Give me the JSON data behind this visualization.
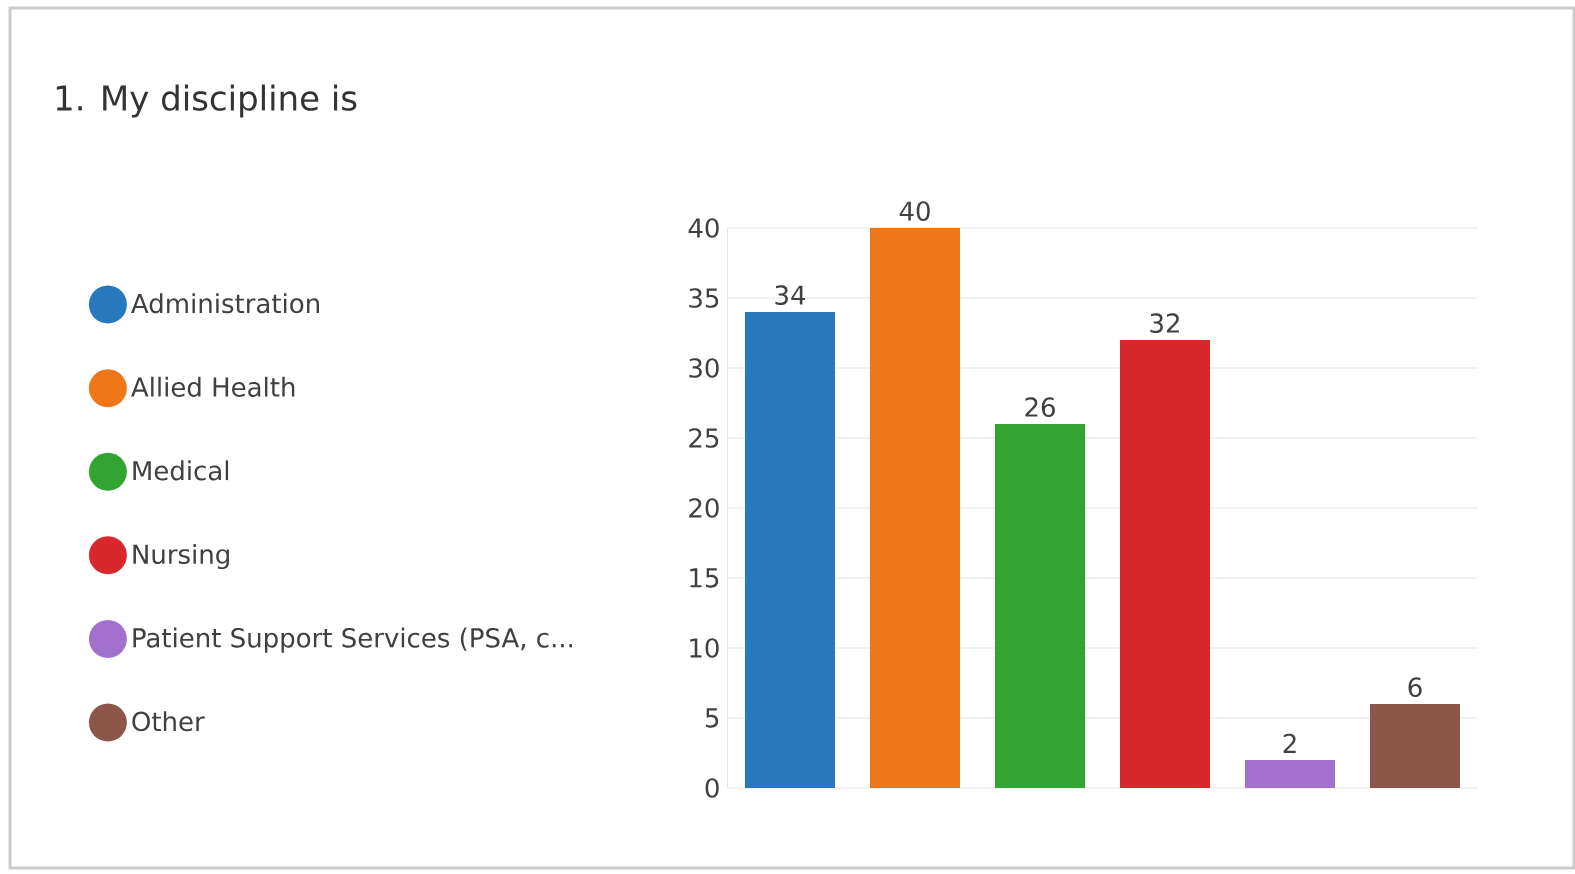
{
  "chart_data": {
    "type": "bar",
    "title": "1.  My discipline is",
    "categories": [
      null,
      null,
      null,
      null,
      null,
      null
    ],
    "series": [
      {
        "name": "Administration",
        "color": "#2878bd",
        "values": [
          34,
          null,
          null,
          null,
          null,
          null
        ]
      },
      {
        "name": "Allied Health",
        "color": "#ef7718",
        "values": [
          null,
          40,
          null,
          null,
          null,
          null
        ]
      },
      {
        "name": "Medical",
        "color": "#32a431",
        "values": [
          null,
          null,
          26,
          null,
          null,
          null
        ]
      },
      {
        "name": "Nursing",
        "color": "#d9282b",
        "values": [
          null,
          null,
          null,
          32,
          null,
          null
        ]
      },
      {
        "name": "Patient Support Services (PSA, c...",
        "color": "#a070cc",
        "values": [
          null,
          null,
          null,
          null,
          2,
          null
        ]
      },
      {
        "name": "Other",
        "color": "#8c564b",
        "values": [
          null,
          null,
          null,
          null,
          null,
          6
        ]
      }
    ],
    "ylim": [
      0,
      40
    ],
    "yticks": [
      0,
      5,
      10,
      15,
      20,
      25,
      30,
      35,
      40
    ],
    "grid": "y",
    "legend": "left",
    "tick_labels": "y",
    "data_labels": true
  }
}
